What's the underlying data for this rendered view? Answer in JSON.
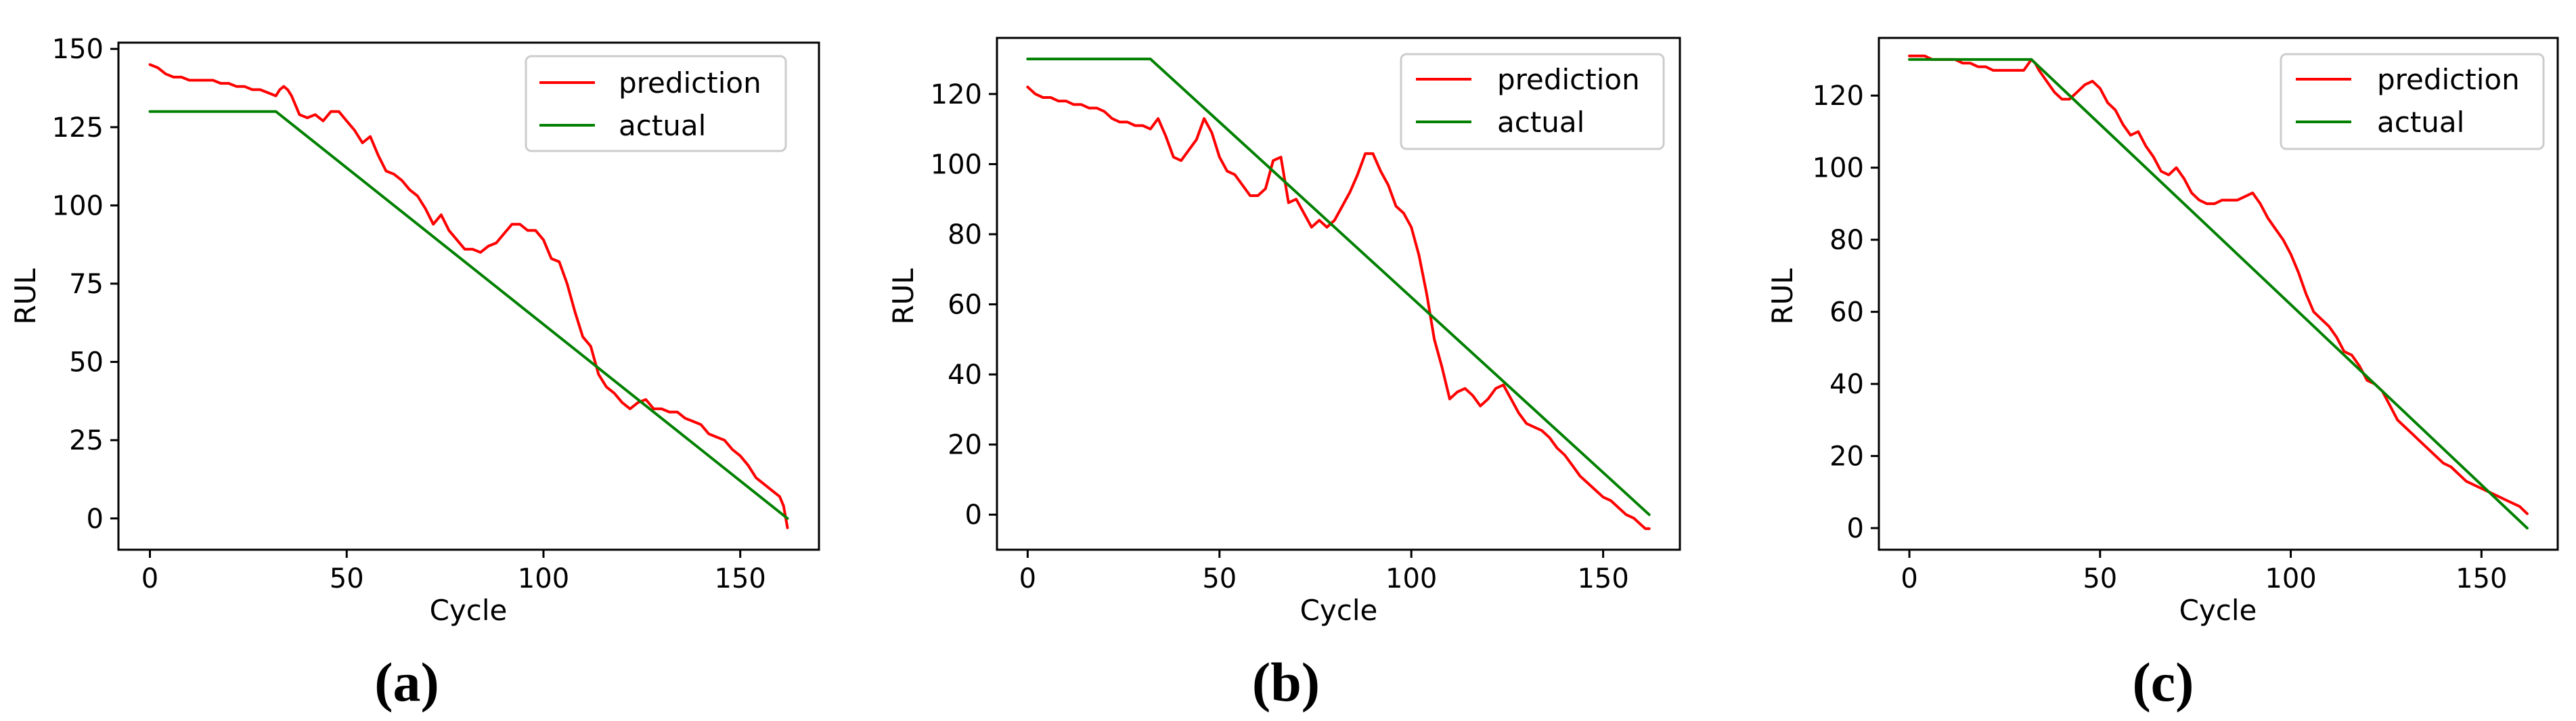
{
  "colors": {
    "prediction": "#ff0000",
    "actual": "#008000",
    "axes": "#000000",
    "legend_border": "#cccccc"
  },
  "chart_data": [
    {
      "type": "line",
      "panel_label": "(a)",
      "xlabel": "Cycle",
      "ylabel": "RUL",
      "xlim": [
        -8,
        170
      ],
      "ylim": [
        -10,
        152
      ],
      "xticks": [
        0,
        50,
        100,
        150
      ],
      "yticks": [
        0,
        25,
        50,
        75,
        100,
        125,
        150
      ],
      "xtick_labels": [
        "0",
        "50",
        "100",
        "150"
      ],
      "ytick_labels": [
        "0",
        "25",
        "50",
        "75",
        "100",
        "125",
        "150"
      ],
      "legend_position": "top-right",
      "series": [
        {
          "name": "prediction",
          "color": "#ff0000",
          "x": [
            0,
            2,
            4,
            6,
            8,
            10,
            12,
            14,
            16,
            18,
            20,
            22,
            24,
            26,
            28,
            30,
            32,
            33,
            34,
            35,
            36,
            38,
            40,
            42,
            44,
            46,
            48,
            50,
            52,
            54,
            56,
            58,
            60,
            62,
            64,
            66,
            68,
            70,
            72,
            74,
            76,
            78,
            80,
            82,
            84,
            86,
            88,
            90,
            92,
            94,
            96,
            98,
            100,
            102,
            104,
            106,
            108,
            110,
            112,
            114,
            116,
            118,
            120,
            122,
            124,
            126,
            128,
            130,
            132,
            134,
            136,
            138,
            140,
            142,
            144,
            146,
            148,
            150,
            152,
            154,
            156,
            158,
            160,
            161,
            162
          ],
          "y": [
            145,
            144,
            142,
            141,
            141,
            140,
            140,
            140,
            140,
            139,
            139,
            138,
            138,
            137,
            137,
            136,
            135,
            137,
            138,
            137,
            135,
            129,
            128,
            129,
            127,
            130,
            130,
            127,
            124,
            120,
            122,
            116,
            111,
            110,
            108,
            105,
            103,
            99,
            94,
            97,
            92,
            89,
            86,
            86,
            85,
            87,
            88,
            91,
            94,
            94,
            92,
            92,
            89,
            83,
            82,
            75,
            66,
            58,
            55,
            46,
            42,
            40,
            37,
            35,
            37,
            38,
            35,
            35,
            34,
            34,
            32,
            31,
            30,
            27,
            26,
            25,
            22,
            20,
            17,
            13,
            11,
            9,
            7,
            4,
            -3
          ]
        },
        {
          "name": "actual",
          "color": "#008000",
          "x": [
            0,
            32,
            162
          ],
          "y": [
            130,
            130,
            0
          ]
        }
      ]
    },
    {
      "type": "line",
      "panel_label": "(b)",
      "xlabel": "Cycle",
      "ylabel": "RUL",
      "xlim": [
        -8,
        170
      ],
      "ylim": [
        -10,
        136
      ],
      "xticks": [
        0,
        50,
        100,
        150
      ],
      "yticks": [
        0,
        20,
        40,
        60,
        80,
        100,
        120
      ],
      "xtick_labels": [
        "0",
        "50",
        "100",
        "150"
      ],
      "ytick_labels": [
        "0",
        "20",
        "40",
        "60",
        "80",
        "100",
        "120"
      ],
      "legend_position": "top-right",
      "series": [
        {
          "name": "prediction",
          "color": "#ff0000",
          "x": [
            0,
            2,
            4,
            6,
            8,
            10,
            12,
            14,
            16,
            18,
            20,
            22,
            24,
            26,
            28,
            30,
            32,
            34,
            36,
            38,
            40,
            42,
            44,
            46,
            48,
            50,
            52,
            54,
            56,
            58,
            60,
            62,
            64,
            66,
            68,
            70,
            72,
            74,
            76,
            78,
            80,
            82,
            84,
            86,
            88,
            90,
            92,
            94,
            96,
            98,
            100,
            102,
            104,
            106,
            108,
            110,
            112,
            114,
            116,
            118,
            120,
            122,
            124,
            126,
            128,
            130,
            132,
            134,
            136,
            138,
            140,
            142,
            144,
            146,
            148,
            150,
            152,
            154,
            156,
            158,
            160,
            161,
            162
          ],
          "y": [
            122,
            120,
            119,
            119,
            118,
            118,
            117,
            117,
            116,
            116,
            115,
            113,
            112,
            112,
            111,
            111,
            110,
            113,
            108,
            102,
            101,
            104,
            107,
            113,
            109,
            102,
            98,
            97,
            94,
            91,
            91,
            93,
            101,
            102,
            89,
            90,
            86,
            82,
            84,
            82,
            84,
            88,
            92,
            97,
            103,
            103,
            98,
            94,
            88,
            86,
            82,
            74,
            63,
            50,
            42,
            33,
            35,
            36,
            34,
            31,
            33,
            36,
            37,
            33,
            29,
            26,
            25,
            24,
            22,
            19,
            17,
            14,
            11,
            9,
            7,
            5,
            4,
            2,
            0,
            -1,
            -3,
            -4,
            -4
          ]
        },
        {
          "name": "actual",
          "color": "#008000",
          "x": [
            0,
            32,
            162
          ],
          "y": [
            130,
            130,
            0
          ]
        }
      ]
    },
    {
      "type": "line",
      "panel_label": "(c)",
      "xlabel": "Cycle",
      "ylabel": "RUL",
      "xlim": [
        -8,
        170
      ],
      "ylim": [
        -6,
        136
      ],
      "xticks": [
        0,
        50,
        100,
        150
      ],
      "yticks": [
        0,
        20,
        40,
        60,
        80,
        100,
        120
      ],
      "xtick_labels": [
        "0",
        "50",
        "100",
        "150"
      ],
      "ytick_labels": [
        "0",
        "20",
        "40",
        "60",
        "80",
        "100",
        "120"
      ],
      "legend_position": "top-right",
      "series": [
        {
          "name": "prediction",
          "color": "#ff0000",
          "x": [
            0,
            2,
            4,
            6,
            8,
            10,
            12,
            14,
            16,
            18,
            20,
            22,
            24,
            26,
            28,
            30,
            32,
            33,
            34,
            36,
            38,
            40,
            42,
            44,
            46,
            48,
            50,
            52,
            54,
            56,
            58,
            60,
            62,
            64,
            66,
            68,
            70,
            72,
            74,
            76,
            78,
            80,
            82,
            84,
            86,
            88,
            90,
            92,
            94,
            96,
            98,
            100,
            102,
            104,
            106,
            108,
            110,
            112,
            114,
            116,
            118,
            120,
            122,
            124,
            126,
            128,
            130,
            132,
            134,
            136,
            138,
            140,
            142,
            144,
            146,
            148,
            150,
            152,
            154,
            156,
            158,
            160,
            161,
            162
          ],
          "y": [
            131,
            131,
            131,
            130,
            130,
            130,
            130,
            129,
            129,
            128,
            128,
            127,
            127,
            127,
            127,
            127,
            130,
            129,
            127,
            124,
            121,
            119,
            119,
            121,
            123,
            124,
            122,
            118,
            116,
            112,
            109,
            110,
            106,
            103,
            99,
            98,
            100,
            97,
            93,
            91,
            90,
            90,
            91,
            91,
            91,
            92,
            93,
            90,
            86,
            83,
            80,
            76,
            71,
            65,
            60,
            58,
            56,
            53,
            49,
            48,
            45,
            41,
            40,
            38,
            34,
            30,
            28,
            26,
            24,
            22,
            20,
            18,
            17,
            15,
            13,
            12,
            11,
            10,
            9,
            8,
            7,
            6,
            5,
            4
          ]
        },
        {
          "name": "actual",
          "color": "#008000",
          "x": [
            0,
            32,
            162
          ],
          "y": [
            130,
            130,
            0
          ]
        }
      ]
    }
  ]
}
